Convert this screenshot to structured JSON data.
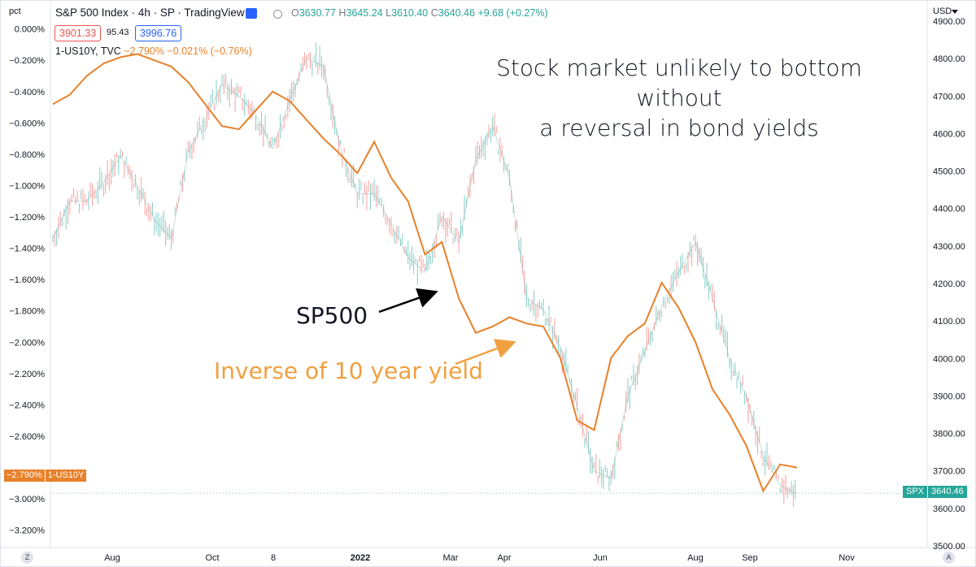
{
  "header": {
    "symbol_title": "S&P 500 Index · 4h · SP · TradingView",
    "ohlc": {
      "o_label": "O",
      "o": "3630.77",
      "h_label": "H",
      "h": "3645.24",
      "l_label": "L",
      "l": "3610.40",
      "c_label": "C",
      "c": "3640.46",
      "change": "+9.68 (+0.27%)"
    },
    "bid": "3901.33",
    "spread": "95.43",
    "ask": "3996.76",
    "indicator_name": "1-US10Y, TVC",
    "indicator_values": "−2.790%  −0.021% (−0.76%)",
    "currency": "USD",
    "left_axis_unit": "pct"
  },
  "price_tags": {
    "left_value": "−2.790%",
    "left_name": "1-US10Y",
    "right_name": "SPX",
    "right_value": "3640.46"
  },
  "annotations": {
    "main_line1": "Stock market unlikely to bottom without",
    "main_line2": "a reversal in bond yields",
    "sp_label": "SP500",
    "inverse_label": "Inverse of 10 year yield"
  },
  "corners": {
    "left": "Z",
    "right": "A"
  },
  "colors": {
    "up": "#26a69a",
    "down": "#ef5350",
    "yield_line": "#e8812a",
    "annotation_orange": "#f0a040",
    "arrow_black": "#000000",
    "grid": "#f0f3fa"
  },
  "chart_data": {
    "type": "line",
    "title": "",
    "x_tick_labels": [
      "Aug",
      "Oct",
      "8",
      "2022",
      "Mar",
      "Apr",
      "Jun",
      "Aug",
      "Sep",
      "Nov"
    ],
    "y_left_ticks": [
      "0.000%",
      "−0.200%",
      "−0.400%",
      "−0.600%",
      "−0.800%",
      "−1.000%",
      "−1.200%",
      "−1.400%",
      "−1.600%",
      "−1.800%",
      "−2.000%",
      "−2.200%",
      "−2.400%",
      "−2.600%",
      "−3.000%",
      "−3.200%"
    ],
    "y_right_ticks": [
      "4900.00",
      "4800.00",
      "4700.00",
      "4600.00",
      "4500.00",
      "4400.00",
      "4300.00",
      "4200.00",
      "4100.00",
      "4000.00",
      "3900.00",
      "3800.00",
      "3700.00",
      "3600.00",
      "3500.00"
    ],
    "y_left_range": [
      -3.3,
      0.05
    ],
    "y_right_range": [
      3500,
      4900
    ],
    "series": [
      {
        "name": "1-US10Y",
        "axis": "left",
        "values": [
          -0.48,
          -0.42,
          -0.3,
          -0.22,
          -0.18,
          -0.16,
          -0.2,
          -0.24,
          -0.34,
          -0.48,
          -0.62,
          -0.64,
          -0.52,
          -0.4,
          -0.46,
          -0.58,
          -0.7,
          -0.8,
          -0.92,
          -0.72,
          -0.95,
          -1.1,
          -1.44,
          -1.36,
          -1.72,
          -1.94,
          -1.9,
          -1.84,
          -1.88,
          -1.9,
          -2.1,
          -2.5,
          -2.56,
          -2.1,
          -1.96,
          -1.88,
          -1.62,
          -1.78,
          -2.0,
          -2.3,
          -2.46,
          -2.66,
          -2.95,
          -2.78,
          -2.8
        ]
      },
      {
        "name": "SPX",
        "axis": "right",
        "values": [
          4320,
          4420,
          4420,
          4470,
          4540,
          4460,
          4370,
          4320,
          4550,
          4640,
          4730,
          4700,
          4650,
          4560,
          4690,
          4800,
          4780,
          4560,
          4440,
          4440,
          4360,
          4270,
          4230,
          4380,
          4310,
          4530,
          4620,
          4480,
          4160,
          4130,
          4030,
          3870,
          3700,
          3680,
          3900,
          4020,
          4140,
          4230,
          4310,
          4160,
          4000,
          3900,
          3740,
          3660,
          3640
        ]
      }
    ]
  }
}
